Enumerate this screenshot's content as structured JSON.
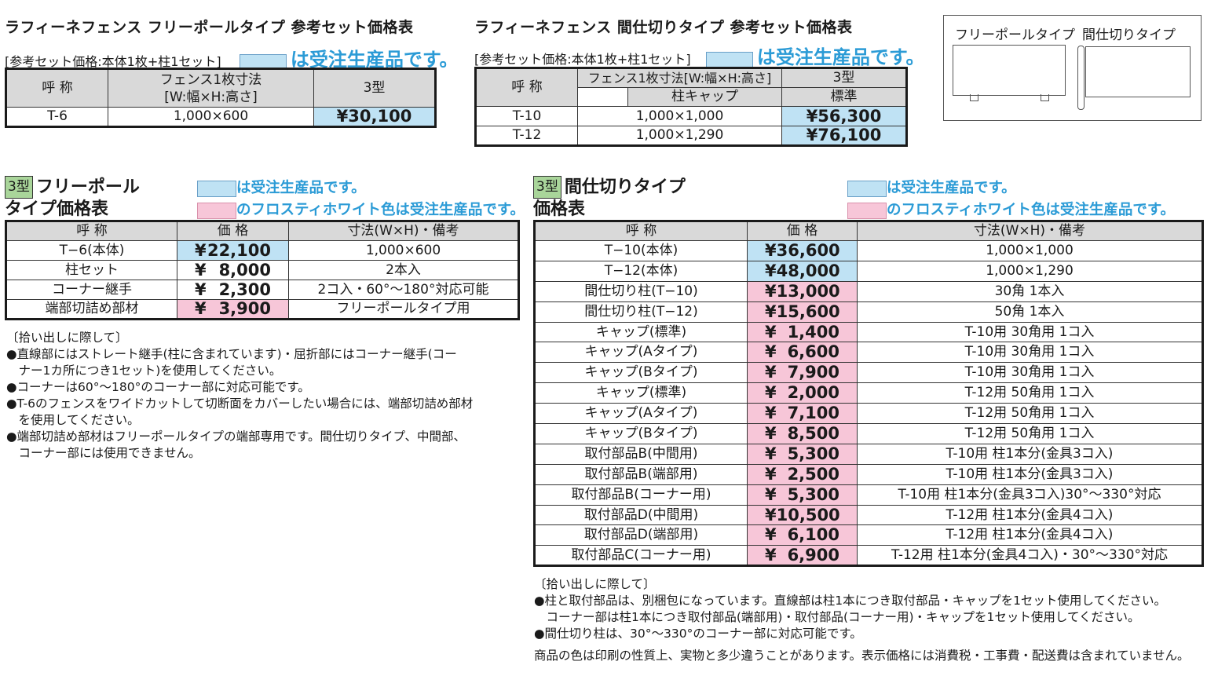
{
  "top_left": {
    "title": "ラフィーネフェンス フリーポールタイプ 参考セット価格表",
    "subtitle": "[参考セット価格:本体1枚+柱1セット]",
    "legend": "は受注生産品です。",
    "headers": [
      "呼 称",
      "フェンス1枚寸法",
      "[W:幅×H:高さ]",
      "3型"
    ],
    "row": [
      "T-6",
      "1,000×600",
      "¥30,100"
    ]
  },
  "top_mid": {
    "title": "ラフィーネフェンス 間仕切りタイプ 参考セット価格表",
    "subtitle": "[参考セット価格:本体1枚+柱1セット]",
    "legend": "は受注生産品です。",
    "headers": [
      "呼 称",
      "フェンス1枚寸法[W:幅×H:高さ]",
      "3型",
      "柱キャップ",
      "標準"
    ],
    "rows": [
      [
        "T-10",
        "1,000×1,000",
        "¥56,300"
      ],
      [
        "T-12",
        "1,000×1,290",
        "¥76,100"
      ]
    ]
  },
  "diagram": {
    "label_left": "フリーポールタイプ",
    "label_right": "間仕切りタイプ"
  },
  "free_pole": {
    "badge": "3型",
    "title1": "フリーポール",
    "title2": "タイプ価格表",
    "legend_blue": "は受注生産品です。",
    "legend_pink": "のフロスティホワイト色は受注生産品です。",
    "headers": [
      "呼 称",
      "価 格",
      "寸法(W×H)・備考"
    ],
    "rows": [
      {
        "name": "T−6(本体)",
        "yen": "¥",
        "amount": "22,100",
        "note": "1,000×600",
        "c": "b"
      },
      {
        "name": "柱セット",
        "yen": "¥",
        "amount": "8,000",
        "note": "2本入",
        "c": "n"
      },
      {
        "name": "コーナー継手",
        "yen": "¥",
        "amount": "2,300",
        "note": "2コ入・60°〜180°対応可能",
        "c": "n"
      },
      {
        "name": "端部切詰め部材",
        "yen": "¥",
        "amount": "3,900",
        "note": "フリーポールタイプ用",
        "c": "p"
      }
    ],
    "notes": [
      "〔拾い出しに際して〕",
      "●直線部にはストレート継手(柱に含まれています)・屈折部にはコーナー継手(コー",
      "　ナー1カ所につき1セット)を使用してください。",
      "●コーナーは60°〜180°のコーナー部に対応可能です。",
      "●T-6のフェンスをワイドカットして切断面をカバーしたい場合には、端部切詰め部材",
      "　を使用してください。",
      "●端部切詰め部材はフリーポールタイプの端部専用です。間仕切りタイプ、中間部、",
      "　コーナー部には使用できません。"
    ]
  },
  "partition": {
    "badge": "3型",
    "title1": "間仕切りタイプ",
    "title2": "価格表",
    "legend_blue": "は受注生産品です。",
    "legend_pink": "のフロスティホワイト色は受注生産品です。",
    "headers": [
      "呼 称",
      "価 格",
      "寸法(W×H)・備考"
    ],
    "rows": [
      {
        "name": "T−10(本体)",
        "yen": "¥",
        "amount": "36,600",
        "note": "1,000×1,000",
        "c": "b"
      },
      {
        "name": "T−12(本体)",
        "yen": "¥",
        "amount": "48,000",
        "note": "1,000×1,290",
        "c": "b"
      },
      {
        "name": "間仕切り柱(T−10)",
        "yen": "¥",
        "amount": "13,000",
        "note": "30角 1本入",
        "c": "p"
      },
      {
        "name": "間仕切り柱(T−12)",
        "yen": "¥",
        "amount": "15,600",
        "note": "50角 1本入",
        "c": "p"
      },
      {
        "name": "キャップ(標準)",
        "yen": "¥",
        "amount": "1,400",
        "note": "T-10用 30角用 1コ入",
        "c": "p"
      },
      {
        "name": "キャップ(Aタイプ)",
        "yen": "¥",
        "amount": "6,600",
        "note": "T-10用 30角用 1コ入",
        "c": "p"
      },
      {
        "name": "キャップ(Bタイプ)",
        "yen": "¥",
        "amount": "7,900",
        "note": "T-10用 30角用 1コ入",
        "c": "p"
      },
      {
        "name": "キャップ(標準)",
        "yen": "¥",
        "amount": "2,000",
        "note": "T-12用 50角用 1コ入",
        "c": "p"
      },
      {
        "name": "キャップ(Aタイプ)",
        "yen": "¥",
        "amount": "7,100",
        "note": "T-12用 50角用 1コ入",
        "c": "p"
      },
      {
        "name": "キャップ(Bタイプ)",
        "yen": "¥",
        "amount": "8,500",
        "note": "T-12用 50角用 1コ入",
        "c": "p"
      },
      {
        "name": "取付部品B(中間用)",
        "yen": "¥",
        "amount": "5,300",
        "note": "T-10用 柱1本分(金具3コ入)",
        "c": "p"
      },
      {
        "name": "取付部品B(端部用)",
        "yen": "¥",
        "amount": "2,500",
        "note": "T-10用 柱1本分(金具3コ入)",
        "c": "p"
      },
      {
        "name": "取付部品B(コーナー用)",
        "yen": "¥",
        "amount": "5,300",
        "note": "T-10用 柱1本分(金具3コ入)30°〜330°対応",
        "c": "p"
      },
      {
        "name": "取付部品D(中間用)",
        "yen": "¥",
        "amount": "10,500",
        "note": "T-12用 柱1本分(金具4コ入)",
        "c": "p"
      },
      {
        "name": "取付部品D(端部用)",
        "yen": "¥",
        "amount": "6,100",
        "note": "T-12用 柱1本分(金具4コ入)",
        "c": "p"
      },
      {
        "name": "取付部品C(コーナー用)",
        "yen": "¥",
        "amount": "6,900",
        "note": "T-12用 柱1本分(金具4コ入)・30°〜330°対応",
        "c": "p"
      }
    ],
    "notes": [
      "〔拾い出しに際して〕",
      "●柱と取付部品は、別梱包になっています。直線部は柱1本につき取付部品・キャップを1セット使用してください。",
      "　コーナー部は柱1本につき取付部品(端部用)・取付部品(コーナー用)・キャップを1セット使用してください。",
      "●間仕切り柱は、30°〜330°のコーナー部に対応可能です。"
    ],
    "footer": "商品の色は印刷の性質上、実物と多少違うことがあります。表示価格には消費税・工事費・配送費は含まれていません。"
  }
}
